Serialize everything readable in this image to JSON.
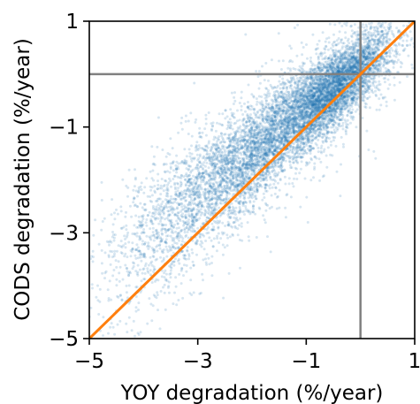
{
  "chart_data": {
    "type": "scatter",
    "title": "",
    "xlabel": "YOY degradation (%/year)",
    "ylabel": "CODS degradation (%/year)",
    "xlim": [
      -5,
      1
    ],
    "ylim": [
      -5,
      1
    ],
    "xticks": [
      -5,
      -3,
      -1,
      1
    ],
    "yticks": [
      -5,
      -3,
      -1,
      1
    ],
    "xtick_labels": [
      "−5",
      "−3",
      "−1",
      "1"
    ],
    "ytick_labels": [
      "−5",
      "−3",
      "−1",
      "1"
    ],
    "grid": false,
    "legend": "none",
    "reference_lines": [
      {
        "orientation": "vertical",
        "x": 0,
        "color": "#808080"
      },
      {
        "orientation": "horizontal",
        "y": 0,
        "color": "#808080"
      }
    ],
    "identity_line": {
      "from": [
        -5,
        -5
      ],
      "to": [
        1,
        1
      ],
      "color": "#ff7f0e"
    },
    "series": [
      {
        "marker_color": "#1f77b4",
        "marker_alpha": 0.18,
        "approx_count": 9000,
        "distribution": "dense diagonal cloud concentrated around (-0.5, -0.3), spreading toward (-3, -2.2) and beyond; lies mostly above the identity line",
        "sample_points": [
          {
            "x": -0.4,
            "y": -0.2
          },
          {
            "x": -0.8,
            "y": -0.5
          },
          {
            "x": -1.5,
            "y": -1.0
          },
          {
            "x": -2.0,
            "y": -1.5
          },
          {
            "x": -2.6,
            "y": -2.0
          },
          {
            "x": -3.2,
            "y": -2.6
          },
          {
            "x": -4.0,
            "y": -3.4
          },
          {
            "x": 0.3,
            "y": 0.4
          },
          {
            "x": -0.1,
            "y": 0.2
          },
          {
            "x": -1.1,
            "y": -0.4
          },
          {
            "x": -1.8,
            "y": -1.8
          },
          {
            "x": -2.4,
            "y": -2.9
          }
        ]
      }
    ]
  }
}
